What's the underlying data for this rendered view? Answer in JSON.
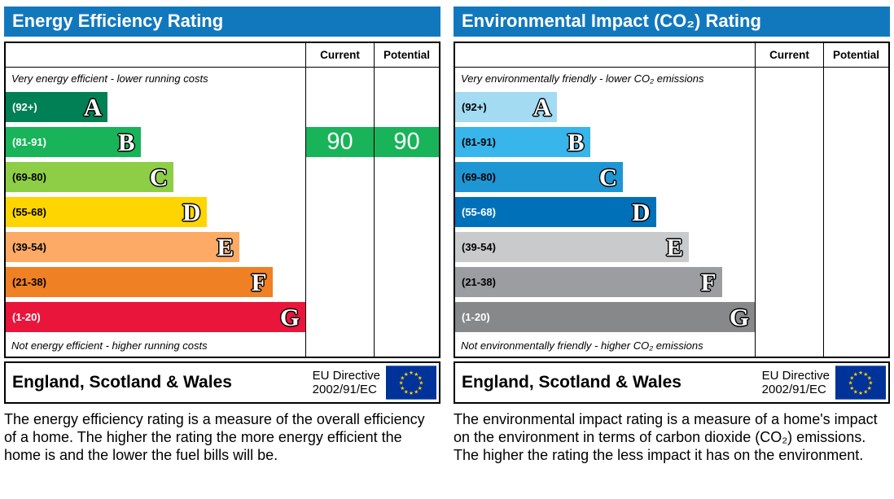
{
  "theme": {
    "header_color": "#1278be"
  },
  "chart_data": [
    {
      "type": "bar",
      "title": "Energy Efficiency Rating",
      "categories": [
        "A (92+)",
        "B (81-91)",
        "C (69-80)",
        "D (55-68)",
        "E (39-54)",
        "F (21-38)",
        "G (1-20)"
      ],
      "values": [
        34,
        45,
        56,
        67,
        78,
        89,
        100
      ],
      "bar_colors": [
        "#008054",
        "#19b459",
        "#8dce46",
        "#ffd500",
        "#fcaa65",
        "#ef8023",
        "#e9153b"
      ],
      "current": 90,
      "potential": 90,
      "current_band": "B",
      "annotations": [
        "Very energy efficient - lower running costs",
        "Not energy efficient - higher running costs"
      ],
      "legend_position": "none"
    },
    {
      "type": "bar",
      "title": "Environmental Impact (CO₂) Rating",
      "categories": [
        "A (92+)",
        "B (81-91)",
        "C (69-80)",
        "D (55-68)",
        "E (39-54)",
        "F (21-38)",
        "G (1-20)"
      ],
      "values": [
        34,
        45,
        56,
        67,
        78,
        89,
        100
      ],
      "bar_colors": [
        "#a3dbf3",
        "#38b5ea",
        "#1e96d4",
        "#0071b9",
        "#c9cacc",
        "#9b9da0",
        "#868889"
      ],
      "current": null,
      "potential": null,
      "annotations": [
        "Very environmentally friendly - lower CO₂ emissions",
        "Not environmentally friendly - higher CO₂ emissions"
      ],
      "legend_position": "none"
    }
  ],
  "panels": {
    "left": {
      "title": "Energy Efficiency Rating",
      "col_current": "Current",
      "col_potential": "Potential",
      "top_caption": "Very energy efficient - lower running costs",
      "bottom_caption": "Not energy efficient - higher running costs",
      "bands": [
        {
          "range": "(92+)",
          "letter": "A",
          "color": "#008054",
          "range_color": "#ffffff",
          "width_pct": 34
        },
        {
          "range": "(81-91)",
          "letter": "B",
          "color": "#19b459",
          "range_color": "#ffffff",
          "width_pct": 45
        },
        {
          "range": "(69-80)",
          "letter": "C",
          "color": "#8dce46",
          "range_color": "#000000",
          "width_pct": 56
        },
        {
          "range": "(55-68)",
          "letter": "D",
          "color": "#ffd500",
          "range_color": "#000000",
          "width_pct": 67
        },
        {
          "range": "(39-54)",
          "letter": "E",
          "color": "#fcaa65",
          "range_color": "#000000",
          "width_pct": 78
        },
        {
          "range": "(21-38)",
          "letter": "F",
          "color": "#ef8023",
          "range_color": "#000000",
          "width_pct": 89
        },
        {
          "range": "(1-20)",
          "letter": "G",
          "color": "#e9153b",
          "range_color": "#ffffff",
          "width_pct": 100
        }
      ],
      "current_value": "90",
      "potential_value": "90",
      "value_color": "#19b459",
      "footer_region": "England, Scotland & Wales",
      "footer_directive_1": "EU Directive",
      "footer_directive_2": "2002/91/EC",
      "description": "The energy efficiency rating is a measure of the overall efficiency of a home. The higher the rating the more energy efficient the home is and the lower the fuel bills will be."
    },
    "right": {
      "title": "Environmental Impact (CO₂) Rating",
      "col_current": "Current",
      "col_potential": "Potential",
      "top_caption": "Very environmentally friendly - lower CO₂ emissions",
      "bottom_caption": "Not environmentally friendly - higher CO₂ emissions",
      "bands": [
        {
          "range": "(92+)",
          "letter": "A",
          "color": "#a3dbf3",
          "range_color": "#000000",
          "width_pct": 34
        },
        {
          "range": "(81-91)",
          "letter": "B",
          "color": "#38b5ea",
          "range_color": "#000000",
          "width_pct": 45
        },
        {
          "range": "(69-80)",
          "letter": "C",
          "color": "#1e96d4",
          "range_color": "#000000",
          "width_pct": 56
        },
        {
          "range": "(55-68)",
          "letter": "D",
          "color": "#0071b9",
          "range_color": "#ffffff",
          "width_pct": 67
        },
        {
          "range": "(39-54)",
          "letter": "E",
          "color": "#c9cacc",
          "range_color": "#000000",
          "width_pct": 78
        },
        {
          "range": "(21-38)",
          "letter": "F",
          "color": "#9b9da0",
          "range_color": "#000000",
          "width_pct": 89
        },
        {
          "range": "(1-20)",
          "letter": "G",
          "color": "#868889",
          "range_color": "#ffffff",
          "width_pct": 100
        }
      ],
      "footer_region": "England, Scotland & Wales",
      "footer_directive_1": "EU Directive",
      "footer_directive_2": "2002/91/EC",
      "description": "The environmental impact rating is a measure of a home's impact on the environment in terms of carbon dioxide (CO₂) emissions. The higher the rating the less impact it has on the environment."
    }
  }
}
